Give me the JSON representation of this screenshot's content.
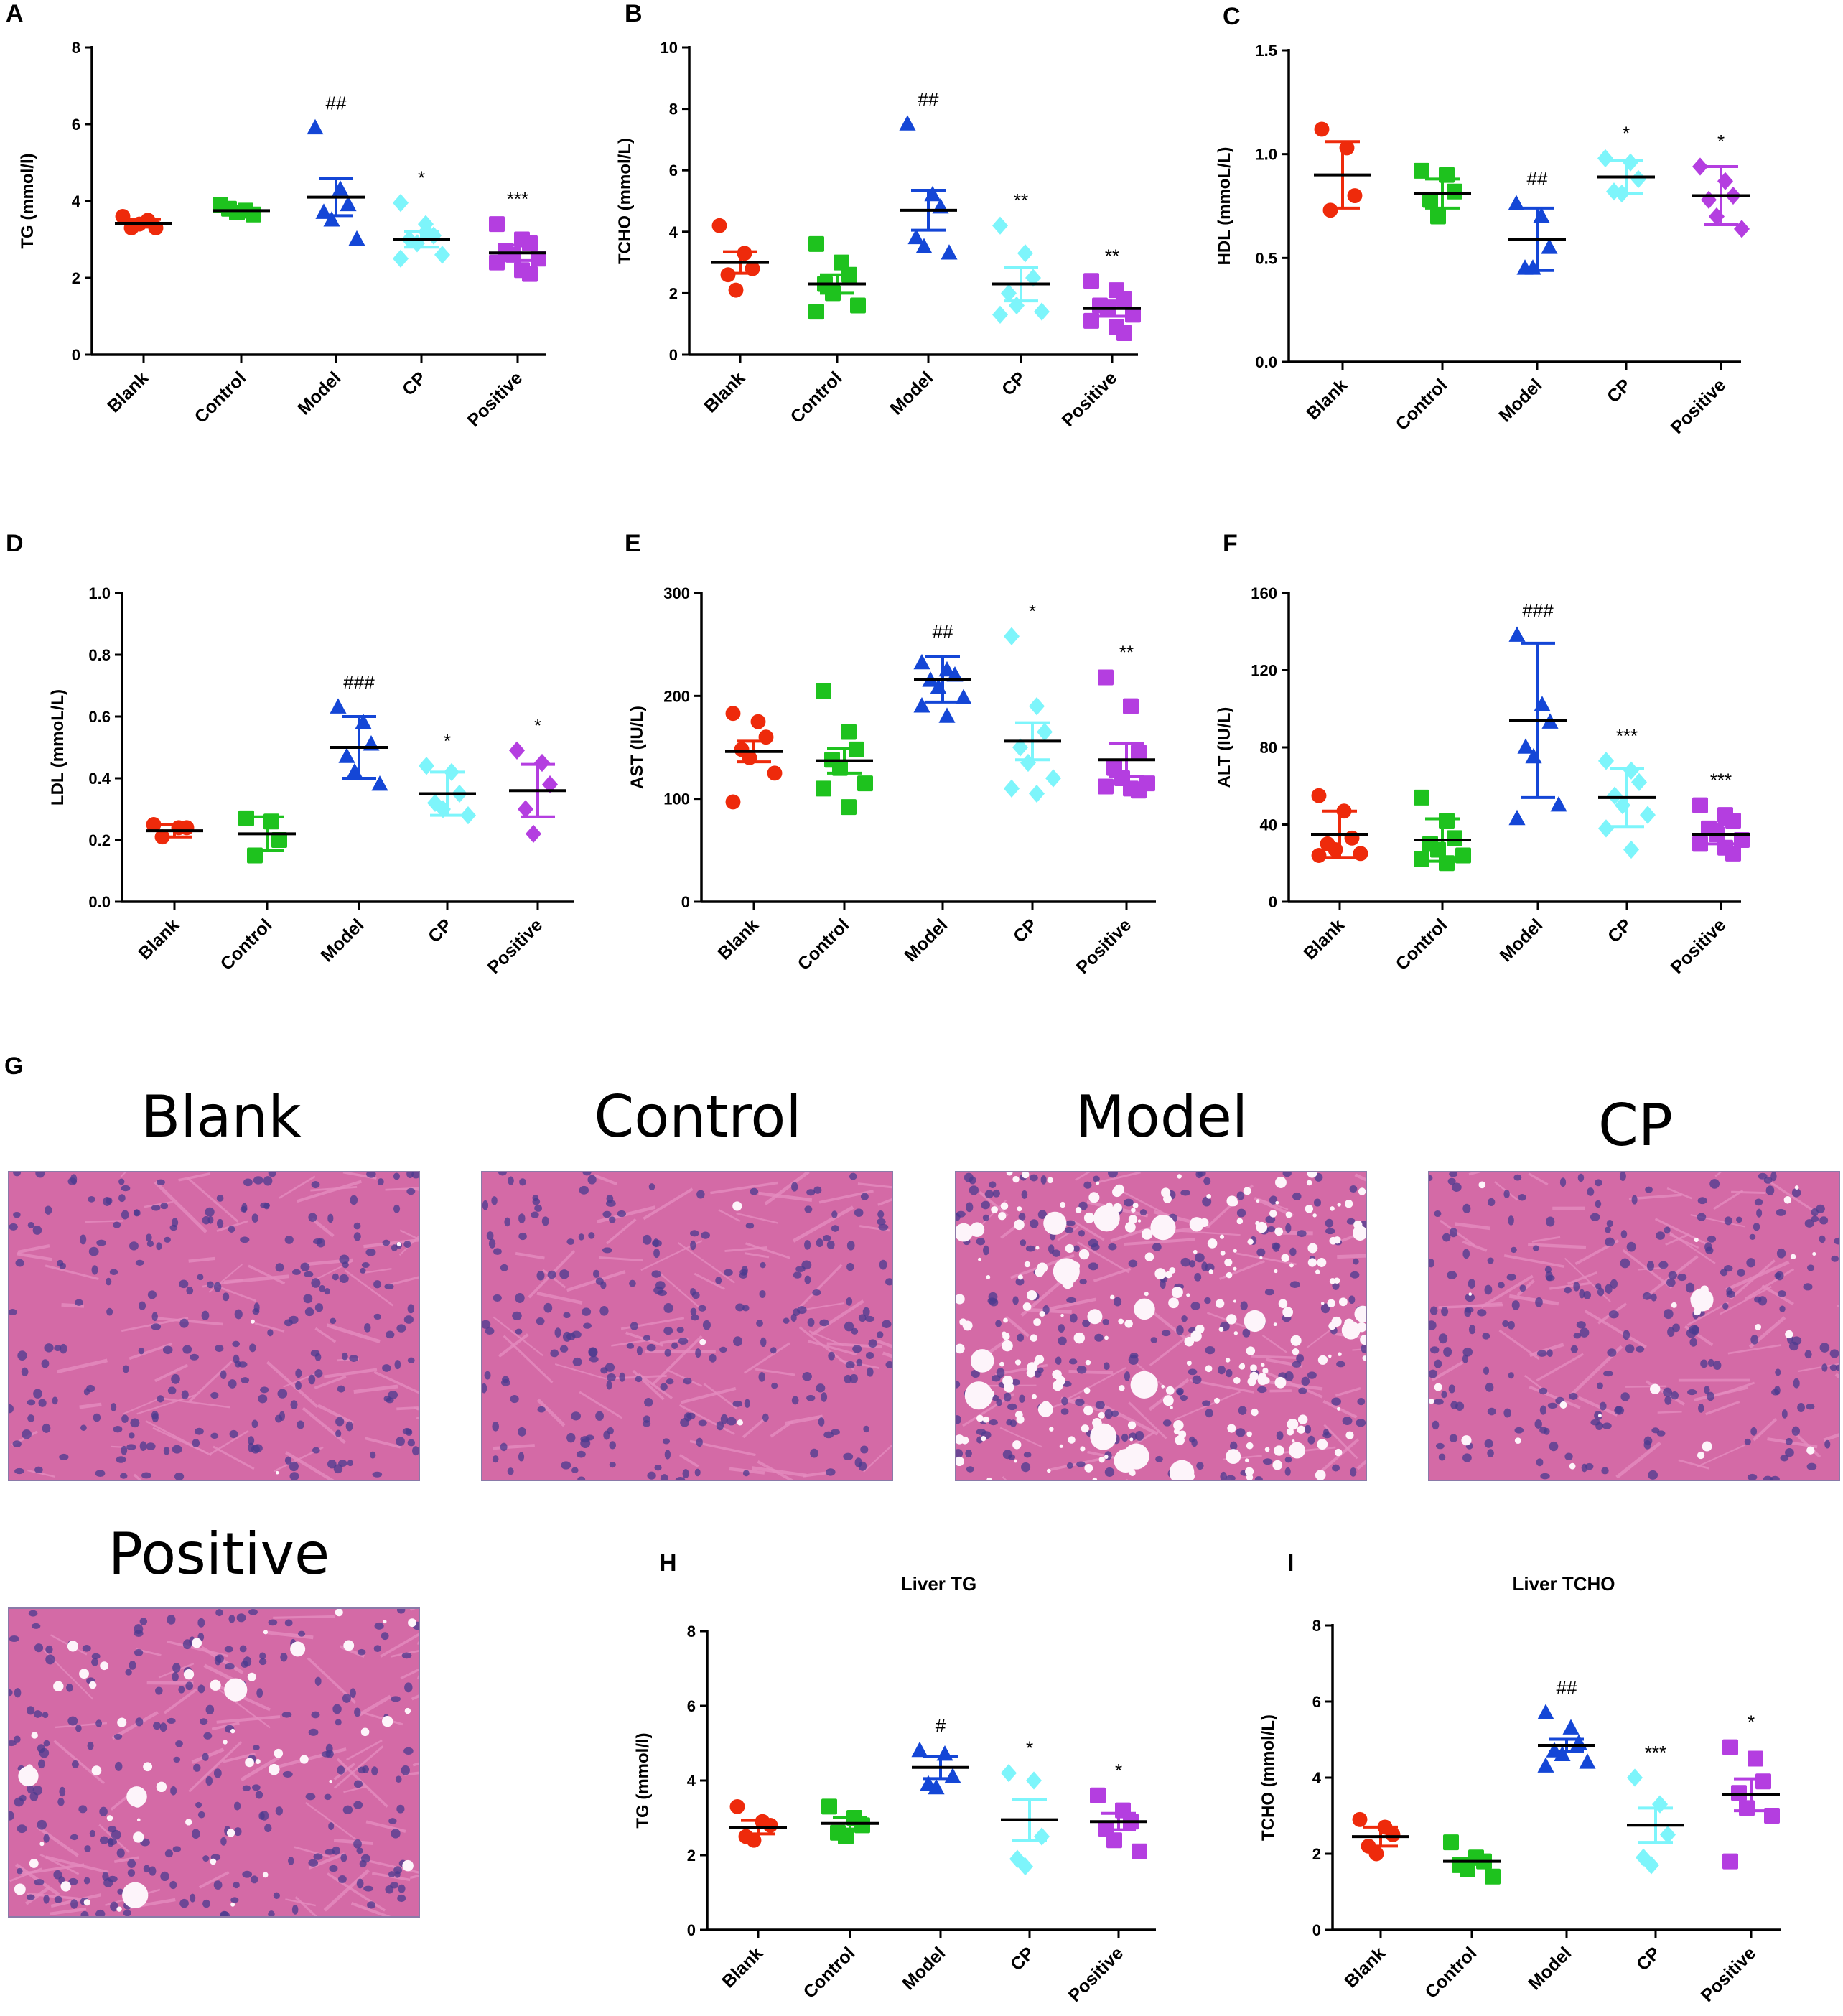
{
  "figure_label_g": "G",
  "colors": {
    "Blank": "#ee2a0b",
    "Control": "#1ec21e",
    "Model": "#1446d6",
    "CP": "#7df5fb",
    "Positive": "#b43ee0",
    "axis": "#000000",
    "tissue_base": "#d46aa6",
    "tissue_light": "#e58cc0",
    "nucleus": "#4b3b8f",
    "vacuole": "#fdf4fa"
  },
  "histology": {
    "panels": [
      {
        "title": "Blank",
        "image": "liver-histology-blank",
        "fat": 0
      },
      {
        "title": "Control",
        "image": "liver-histology-control",
        "fat": 0
      },
      {
        "title": "Model",
        "image": "liver-histology-model",
        "fat": 3
      },
      {
        "title": "CP",
        "image": "liver-histology-cp",
        "fat": 1
      },
      {
        "title": "Positive",
        "image": "liver-histology-positive",
        "fat": 2
      }
    ]
  },
  "chart_data": [
    {
      "id": "A",
      "label": "A",
      "type": "scatter",
      "title": "",
      "ylabel": "TG (mmol/l)",
      "ylim": [
        0,
        8
      ],
      "yticks": [
        0,
        2,
        4,
        6,
        8
      ],
      "ytick_labels": [
        "0",
        "2",
        "4",
        "6",
        "8"
      ],
      "categories": [
        "Blank",
        "Control",
        "Model",
        "CP",
        "Positive"
      ],
      "groups": [
        {
          "name": "Blank",
          "marker": "circle",
          "mean": 3.42,
          "err": 0.1,
          "points": [
            3.6,
            3.5,
            3.3,
            3.3,
            3.4
          ],
          "sig": ""
        },
        {
          "name": "Control",
          "marker": "square",
          "mean": 3.75,
          "err": 0.06,
          "points": [
            3.9,
            3.75,
            3.65,
            3.8,
            3.7
          ],
          "sig": ""
        },
        {
          "name": "Model",
          "marker": "triangle",
          "mean": 4.1,
          "err": 0.48,
          "points": [
            5.9,
            4.3,
            3.9,
            3.7,
            3.5,
            3.0
          ],
          "sig": "##"
        },
        {
          "name": "CP",
          "marker": "diamond",
          "mean": 3.0,
          "err": 0.2,
          "points": [
            3.95,
            3.4,
            3.1,
            3.0,
            2.9,
            2.6,
            2.5,
            3.2
          ],
          "sig": "*"
        },
        {
          "name": "Positive",
          "marker": "square",
          "mean": 2.65,
          "err": 0.2,
          "points": [
            3.4,
            3.0,
            2.9,
            2.7,
            2.6,
            2.5,
            2.4,
            2.2,
            2.1
          ],
          "sig": "***"
        }
      ]
    },
    {
      "id": "B",
      "label": "B",
      "type": "scatter",
      "title": "",
      "ylabel": "TCHO (mmol/L)",
      "ylim": [
        0,
        10
      ],
      "yticks": [
        0,
        2,
        4,
        6,
        8,
        10
      ],
      "ytick_labels": [
        "0",
        "2",
        "4",
        "6",
        "8",
        "10"
      ],
      "categories": [
        "Blank",
        "Control",
        "Model",
        "CP",
        "Positive"
      ],
      "groups": [
        {
          "name": "Blank",
          "marker": "circle",
          "mean": 3.0,
          "err": 0.35,
          "points": [
            4.2,
            3.3,
            2.8,
            2.6,
            2.1
          ],
          "sig": ""
        },
        {
          "name": "Control",
          "marker": "square",
          "mean": 2.3,
          "err": 0.3,
          "points": [
            3.6,
            3.0,
            2.6,
            2.3,
            2.0,
            1.6,
            1.4
          ],
          "sig": ""
        },
        {
          "name": "Model",
          "marker": "triangle",
          "mean": 4.7,
          "err": 0.65,
          "points": [
            7.5,
            5.2,
            4.8,
            3.8,
            3.5,
            3.3
          ],
          "sig": "##"
        },
        {
          "name": "CP",
          "marker": "diamond",
          "mean": 2.3,
          "err": 0.55,
          "points": [
            4.2,
            3.3,
            2.5,
            2.0,
            1.6,
            1.4,
            1.3
          ],
          "sig": "**"
        },
        {
          "name": "Positive",
          "marker": "square",
          "mean": 1.5,
          "err": 0.25,
          "points": [
            2.4,
            2.1,
            1.8,
            1.6,
            1.5,
            1.3,
            1.1,
            0.9,
            0.7
          ],
          "sig": "**"
        }
      ]
    },
    {
      "id": "C",
      "label": "C",
      "type": "scatter",
      "title": "",
      "ylabel": "HDL (mmoL/L)",
      "ylim": [
        0,
        1.5
      ],
      "yticks": [
        0,
        0.5,
        1.0,
        1.5
      ],
      "ytick_labels": [
        "0.0",
        "0.5",
        "1.0",
        "1.5"
      ],
      "categories": [
        "Blank",
        "Control",
        "Model",
        "CP",
        "Positive"
      ],
      "groups": [
        {
          "name": "Blank",
          "marker": "circle",
          "mean": 0.9,
          "err": 0.16,
          "points": [
            1.12,
            1.03,
            0.8,
            0.73
          ],
          "sig": ""
        },
        {
          "name": "Control",
          "marker": "square",
          "mean": 0.81,
          "err": 0.07,
          "points": [
            0.92,
            0.9,
            0.82,
            0.78,
            0.7
          ],
          "sig": ""
        },
        {
          "name": "Model",
          "marker": "triangle",
          "mean": 0.59,
          "err": 0.15,
          "points": [
            0.76,
            0.7,
            0.55,
            0.45,
            0.45
          ],
          "sig": "##"
        },
        {
          "name": "CP",
          "marker": "diamond",
          "mean": 0.89,
          "err": 0.08,
          "points": [
            0.98,
            0.96,
            0.88,
            0.82,
            0.81
          ],
          "sig": "*"
        },
        {
          "name": "Positive",
          "marker": "diamond",
          "mean": 0.8,
          "err": 0.14,
          "points": [
            0.94,
            0.87,
            0.8,
            0.78,
            0.7,
            0.64
          ],
          "sig": "*"
        }
      ]
    },
    {
      "id": "D",
      "label": "D",
      "type": "scatter",
      "title": "",
      "ylabel": "LDL (mmoL/L)",
      "ylim": [
        0,
        1.0
      ],
      "yticks": [
        0,
        0.2,
        0.4,
        0.6,
        0.8,
        1.0
      ],
      "ytick_labels": [
        "0.0",
        "0.2",
        "0.4",
        "0.6",
        "0.8",
        "1.0"
      ],
      "categories": [
        "Blank",
        "Control",
        "Model",
        "CP",
        "Positive"
      ],
      "groups": [
        {
          "name": "Blank",
          "marker": "circle",
          "mean": 0.23,
          "err": 0.02,
          "points": [
            0.25,
            0.24,
            0.24,
            0.21
          ],
          "sig": ""
        },
        {
          "name": "Control",
          "marker": "square",
          "mean": 0.22,
          "err": 0.055,
          "points": [
            0.27,
            0.26,
            0.2,
            0.15
          ],
          "sig": ""
        },
        {
          "name": "Model",
          "marker": "triangle",
          "mean": 0.5,
          "err": 0.1,
          "points": [
            0.63,
            0.58,
            0.51,
            0.47,
            0.42,
            0.38
          ],
          "sig": "###"
        },
        {
          "name": "CP",
          "marker": "diamond",
          "mean": 0.35,
          "err": 0.07,
          "points": [
            0.44,
            0.42,
            0.35,
            0.32,
            0.3,
            0.28
          ],
          "sig": "*"
        },
        {
          "name": "Positive",
          "marker": "diamond",
          "mean": 0.36,
          "err": 0.085,
          "points": [
            0.49,
            0.45,
            0.38,
            0.3,
            0.22
          ],
          "sig": "*"
        }
      ]
    },
    {
      "id": "E",
      "label": "E",
      "type": "scatter",
      "title": "",
      "ylabel": "AST (IU/L)",
      "ylim": [
        0,
        300
      ],
      "yticks": [
        0,
        100,
        200,
        300
      ],
      "ytick_labels": [
        "0",
        "100",
        "200",
        "300"
      ],
      "categories": [
        "Blank",
        "Control",
        "Model",
        "CP",
        "Positive"
      ],
      "groups": [
        {
          "name": "Blank",
          "marker": "circle",
          "mean": 146,
          "err": 10,
          "points": [
            183,
            175,
            160,
            148,
            140,
            125,
            97
          ],
          "sig": ""
        },
        {
          "name": "Control",
          "marker": "square",
          "mean": 137,
          "err": 12,
          "points": [
            205,
            165,
            148,
            138,
            130,
            115,
            110,
            92
          ],
          "sig": ""
        },
        {
          "name": "Model",
          "marker": "triangle",
          "mean": 216,
          "err": 22,
          "points": [
            232,
            225,
            220,
            215,
            208,
            198,
            190,
            180
          ],
          "sig": "##"
        },
        {
          "name": "CP",
          "marker": "diamond",
          "mean": 156,
          "err": 18,
          "points": [
            258,
            190,
            165,
            150,
            135,
            120,
            110,
            105
          ],
          "sig": "*"
        },
        {
          "name": "Positive",
          "marker": "square",
          "mean": 138,
          "err": 16,
          "points": [
            218,
            190,
            145,
            130,
            120,
            115,
            112,
            110,
            108
          ],
          "sig": "**"
        }
      ]
    },
    {
      "id": "F",
      "label": "F",
      "type": "scatter",
      "title": "",
      "ylabel": "ALT (IU/L)",
      "ylim": [
        0,
        160
      ],
      "yticks": [
        0,
        40,
        80,
        120,
        160
      ],
      "ytick_labels": [
        "0",
        "40",
        "80",
        "120",
        "160"
      ],
      "categories": [
        "Blank",
        "Control",
        "Model",
        "CP",
        "Positive"
      ],
      "groups": [
        {
          "name": "Blank",
          "marker": "circle",
          "mean": 35,
          "err": 12,
          "points": [
            55,
            47,
            33,
            30,
            27,
            25,
            24
          ],
          "sig": ""
        },
        {
          "name": "Control",
          "marker": "square",
          "mean": 32,
          "err": 11,
          "points": [
            54,
            42,
            33,
            30,
            27,
            24,
            22,
            20
          ],
          "sig": ""
        },
        {
          "name": "Model",
          "marker": "triangle",
          "mean": 94,
          "err": 40,
          "points": [
            138,
            102,
            93,
            80,
            75,
            50,
            43
          ],
          "sig": "###"
        },
        {
          "name": "CP",
          "marker": "diamond",
          "mean": 54,
          "err": 15,
          "points": [
            73,
            68,
            62,
            55,
            50,
            45,
            38,
            27
          ],
          "sig": "***"
        },
        {
          "name": "Positive",
          "marker": "square",
          "mean": 35,
          "err": 5,
          "points": [
            50,
            45,
            42,
            38,
            35,
            32,
            30,
            28,
            25
          ],
          "sig": "***"
        }
      ]
    },
    {
      "id": "H",
      "label": "H",
      "type": "scatter",
      "title": "Liver TG",
      "ylabel": "TG (mmol/l)",
      "ylim": [
        0,
        8
      ],
      "yticks": [
        0,
        2,
        4,
        6,
        8
      ],
      "ytick_labels": [
        "0",
        "2",
        "4",
        "6",
        "8"
      ],
      "categories": [
        "Blank",
        "Control",
        "Model",
        "CP",
        "Positive"
      ],
      "groups": [
        {
          "name": "Blank",
          "marker": "circle",
          "mean": 2.75,
          "err": 0.18,
          "points": [
            3.3,
            2.9,
            2.8,
            2.5,
            2.4
          ],
          "sig": ""
        },
        {
          "name": "Control",
          "marker": "square",
          "mean": 2.85,
          "err": 0.15,
          "points": [
            3.3,
            3.0,
            2.8,
            2.6,
            2.5
          ],
          "sig": ""
        },
        {
          "name": "Model",
          "marker": "triangle",
          "mean": 4.35,
          "err": 0.3,
          "points": [
            4.8,
            4.7,
            4.1,
            3.9,
            3.8
          ],
          "sig": "#"
        },
        {
          "name": "CP",
          "marker": "diamond",
          "mean": 2.95,
          "err": 0.55,
          "points": [
            4.2,
            4.0,
            2.5,
            1.9,
            1.7
          ],
          "sig": "*"
        },
        {
          "name": "Positive",
          "marker": "square",
          "mean": 2.9,
          "err": 0.22,
          "points": [
            3.6,
            3.2,
            2.9,
            2.7,
            2.4,
            2.1
          ],
          "sig": "*"
        }
      ]
    },
    {
      "id": "I",
      "label": "I",
      "type": "scatter",
      "title": "Liver TCHO",
      "ylabel": "TCHO (mmol/L)",
      "ylim": [
        0,
        8
      ],
      "yticks": [
        0,
        2,
        4,
        6,
        8
      ],
      "ytick_labels": [
        "0",
        "2",
        "4",
        "6",
        "8"
      ],
      "categories": [
        "Blank",
        "Control",
        "Model",
        "CP",
        "Positive"
      ],
      "groups": [
        {
          "name": "Blank",
          "marker": "circle",
          "mean": 2.45,
          "err": 0.25,
          "points": [
            2.9,
            2.7,
            2.5,
            2.2,
            2.0
          ],
          "sig": ""
        },
        {
          "name": "Control",
          "marker": "square",
          "mean": 1.8,
          "err": 0.08,
          "points": [
            2.3,
            1.9,
            1.8,
            1.7,
            1.6,
            1.4
          ],
          "sig": ""
        },
        {
          "name": "Model",
          "marker": "triangle",
          "mean": 4.85,
          "err": 0.16,
          "points": [
            5.7,
            5.3,
            4.9,
            4.7,
            4.6,
            4.4,
            4.3
          ],
          "sig": "##"
        },
        {
          "name": "CP",
          "marker": "diamond",
          "mean": 2.75,
          "err": 0.45,
          "points": [
            4.0,
            3.3,
            2.5,
            1.9,
            1.7
          ],
          "sig": "***"
        },
        {
          "name": "Positive",
          "marker": "square",
          "mean": 3.55,
          "err": 0.42,
          "points": [
            4.8,
            4.5,
            3.9,
            3.6,
            3.2,
            3.0,
            1.8
          ],
          "sig": "*"
        }
      ]
    }
  ]
}
